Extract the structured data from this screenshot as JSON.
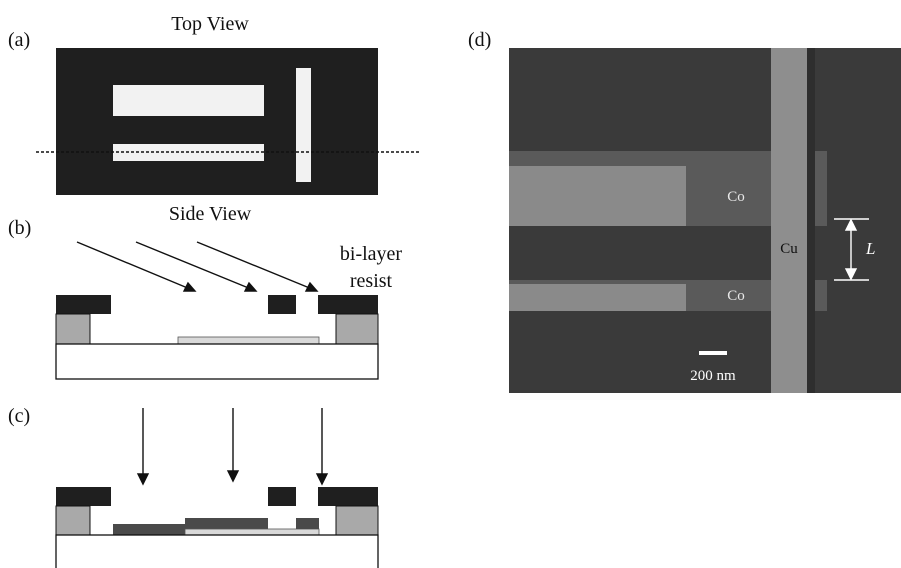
{
  "panels": {
    "a": {
      "tag": "(a)",
      "title": "Top View"
    },
    "b": {
      "tag": "(b)",
      "title": "Side View",
      "resist_label_1": "bi-layer",
      "resist_label_2": "resist"
    },
    "c": {
      "tag": "(c)"
    },
    "d": {
      "tag": "(d)",
      "co_top": "Co",
      "co_bottom": "Co",
      "cu": "Cu",
      "length_symbol": "L",
      "scale_bar": "200 nm"
    }
  },
  "colors": {
    "resist_dark": "#1f1f1f",
    "resist_light": "#a9a9a9",
    "sem_background": "#3a3a3a",
    "cobalt": "#8a8a8a",
    "copper": "#8e8e8e"
  }
}
